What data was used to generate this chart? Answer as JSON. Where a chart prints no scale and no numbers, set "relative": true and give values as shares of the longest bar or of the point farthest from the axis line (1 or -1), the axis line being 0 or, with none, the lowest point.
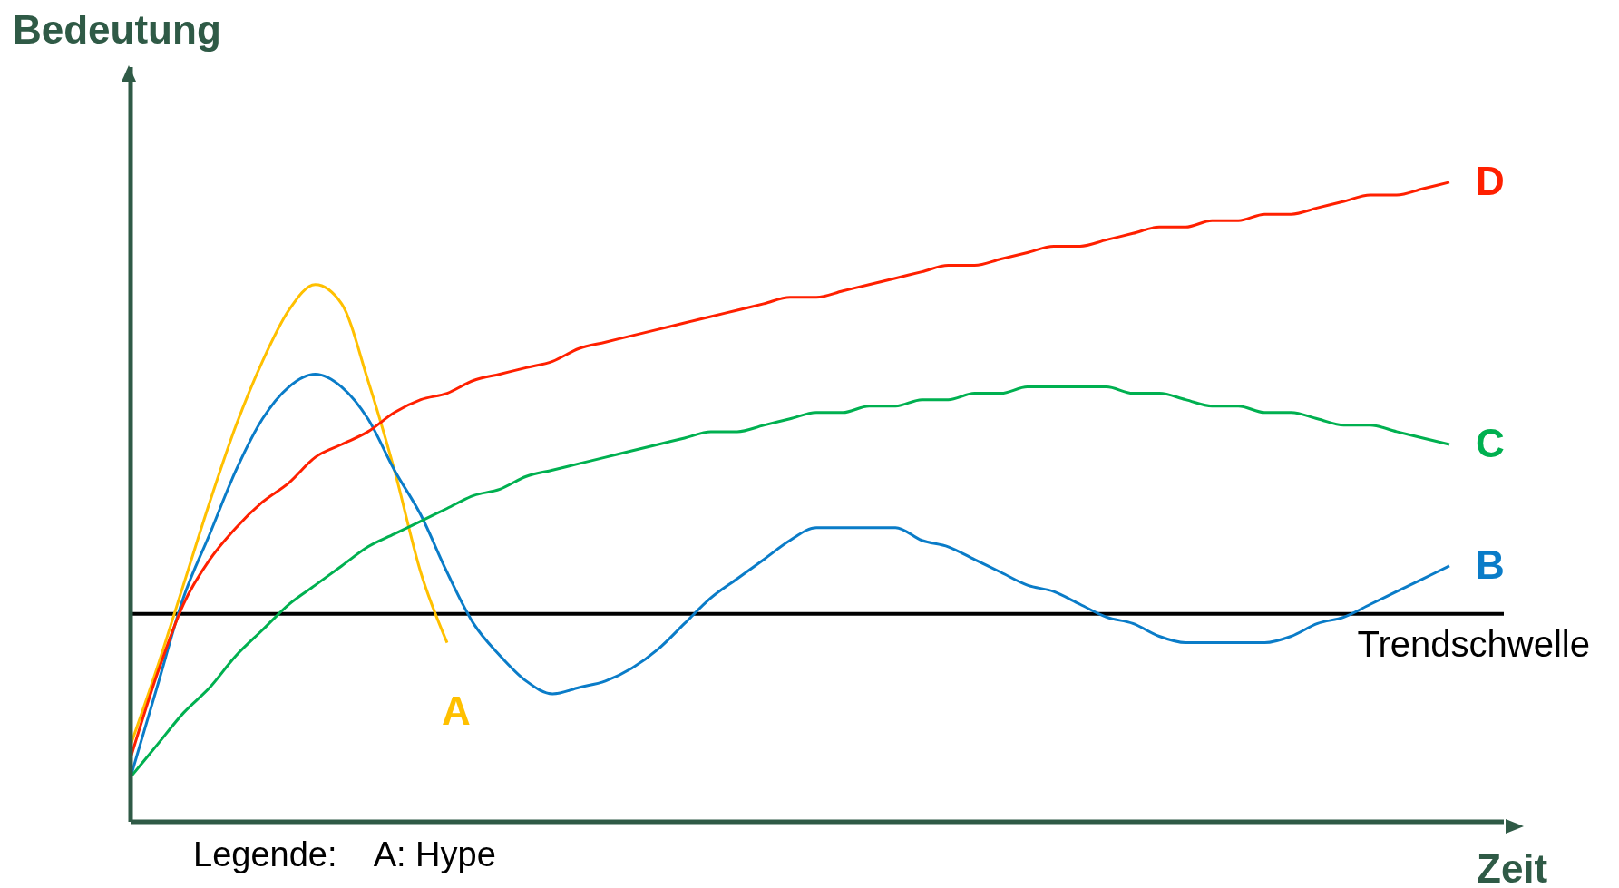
{
  "chart_data": {
    "type": "line",
    "relative": true,
    "xlabel": "Zeit",
    "ylabel": "Bedeutung",
    "categories": [
      null,
      null,
      null,
      null,
      null,
      null,
      null,
      null,
      null,
      null,
      null,
      null,
      null,
      null,
      null,
      null,
      null,
      null,
      null,
      null,
      null,
      null,
      null,
      null,
      null,
      null,
      null,
      null,
      null,
      null,
      null,
      null,
      null,
      null,
      null,
      null,
      null,
      null,
      null,
      null,
      null,
      null,
      null,
      null,
      null,
      null,
      null,
      null,
      null,
      null,
      null
    ],
    "series": [
      {
        "name": "A",
        "color": "#ffc000",
        "values": [
          0.12,
          0.24,
          0.37,
          0.5,
          0.62,
          0.72,
          0.8,
          0.84,
          0.81,
          0.69,
          0.55,
          0.39,
          0.28,
          null,
          null,
          null,
          null,
          null,
          null,
          null,
          null,
          null,
          null,
          null,
          null,
          null,
          null,
          null,
          null,
          null,
          null,
          null,
          null,
          null,
          null,
          null,
          null,
          null,
          null,
          null,
          null,
          null,
          null,
          null,
          null,
          null,
          null,
          null,
          null,
          null,
          null
        ]
      },
      {
        "name": "B",
        "color": "#0a7cc8",
        "values": [
          0.07,
          0.21,
          0.35,
          0.45,
          0.55,
          0.63,
          0.68,
          0.7,
          0.68,
          0.63,
          0.55,
          0.48,
          0.39,
          0.31,
          0.26,
          0.22,
          0.2,
          0.21,
          0.22,
          0.24,
          0.27,
          0.31,
          0.35,
          0.38,
          0.41,
          0.44,
          0.46,
          0.46,
          0.46,
          0.46,
          0.44,
          0.43,
          0.41,
          0.39,
          0.37,
          0.36,
          0.34,
          0.32,
          0.31,
          0.29,
          0.28,
          0.28,
          0.28,
          0.28,
          0.29,
          0.31,
          0.32,
          0.34,
          0.36,
          0.38,
          0.4
        ]
      },
      {
        "name": "C",
        "color": "#00b050",
        "values": [
          0.07,
          0.12,
          0.17,
          0.21,
          0.26,
          0.3,
          0.34,
          0.37,
          0.4,
          0.43,
          0.45,
          0.47,
          0.49,
          0.51,
          0.52,
          0.54,
          0.55,
          0.56,
          0.57,
          0.58,
          0.59,
          0.6,
          0.61,
          0.61,
          0.62,
          0.63,
          0.64,
          0.64,
          0.65,
          0.65,
          0.66,
          0.66,
          0.67,
          0.67,
          0.68,
          0.68,
          0.68,
          0.68,
          0.67,
          0.67,
          0.66,
          0.65,
          0.65,
          0.64,
          0.64,
          0.63,
          0.62,
          0.62,
          0.61,
          0.6,
          0.59
        ]
      },
      {
        "name": "D",
        "color": "#ff2000",
        "values": [
          0.1,
          0.23,
          0.34,
          0.41,
          0.46,
          0.5,
          0.53,
          0.57,
          0.59,
          0.61,
          0.64,
          0.66,
          0.67,
          0.69,
          0.7,
          0.71,
          0.72,
          0.74,
          0.75,
          0.76,
          0.77,
          0.78,
          0.79,
          0.8,
          0.81,
          0.82,
          0.82,
          0.83,
          0.84,
          0.85,
          0.86,
          0.87,
          0.87,
          0.88,
          0.89,
          0.9,
          0.9,
          0.91,
          0.92,
          0.93,
          0.93,
          0.94,
          0.94,
          0.95,
          0.95,
          0.96,
          0.97,
          0.98,
          0.98,
          0.99,
          1.0
        ]
      }
    ],
    "ref_lines": [
      {
        "axis": "y",
        "value": 0.325,
        "label": "Trendschwelle",
        "color": "#000000"
      }
    ],
    "annotations": [
      "Legende:    A: Hype"
    ],
    "legend": false,
    "grid": false,
    "marker": "none",
    "line_style": "solid"
  }
}
